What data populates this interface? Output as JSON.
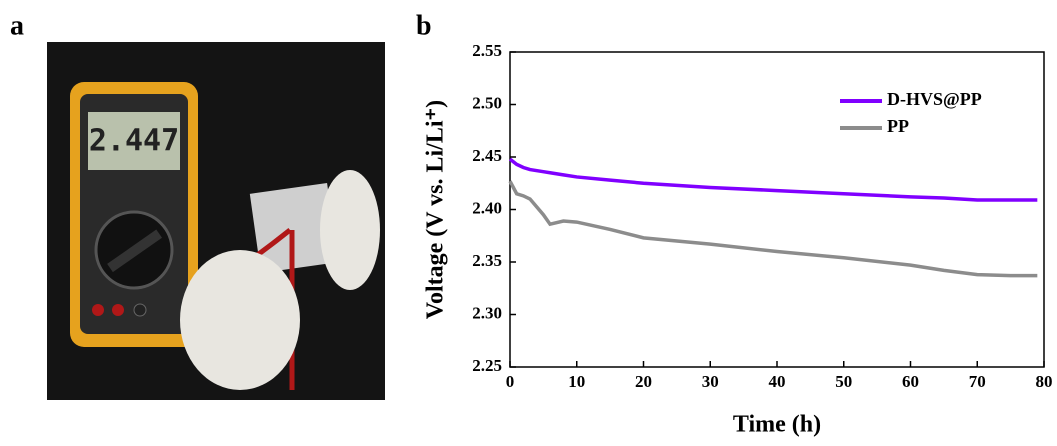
{
  "panel_labels": {
    "a": "a",
    "b": "b"
  },
  "photo": {
    "display": "2.447"
  },
  "chart_data": {
    "type": "line",
    "xlabel": "Time (h)",
    "ylabel": "Voltage (V vs. Li/Li⁺)",
    "x": [
      0,
      1,
      2,
      3,
      5,
      6,
      8,
      10,
      15,
      20,
      30,
      40,
      50,
      60,
      65,
      70,
      75,
      79
    ],
    "series": [
      {
        "name": "D-HVS@PP",
        "color": "#8000ff",
        "values": [
          2.448,
          2.443,
          2.44,
          2.438,
          2.436,
          2.435,
          2.433,
          2.431,
          2.428,
          2.425,
          2.421,
          2.418,
          2.415,
          2.412,
          2.411,
          2.409,
          2.409,
          2.409
        ]
      },
      {
        "name": "PP",
        "color": "#8c8c8c",
        "values": [
          2.427,
          2.415,
          2.413,
          2.41,
          2.395,
          2.386,
          2.389,
          2.388,
          2.381,
          2.373,
          2.367,
          2.36,
          2.354,
          2.347,
          2.342,
          2.338,
          2.337,
          2.337
        ]
      }
    ],
    "xlim": [
      0,
      80
    ],
    "xticks": [
      0,
      10,
      20,
      30,
      40,
      50,
      60,
      70,
      80
    ],
    "ylim": [
      2.25,
      2.55
    ],
    "yticks": [
      2.25,
      {
        "value": 2.3,
        "label": "2.30"
      },
      2.35,
      {
        "value": 2.4,
        "label": "2.40"
      },
      2.45,
      {
        "value": 2.5,
        "label": "2.50"
      },
      2.55
    ],
    "legend": "upper right"
  }
}
